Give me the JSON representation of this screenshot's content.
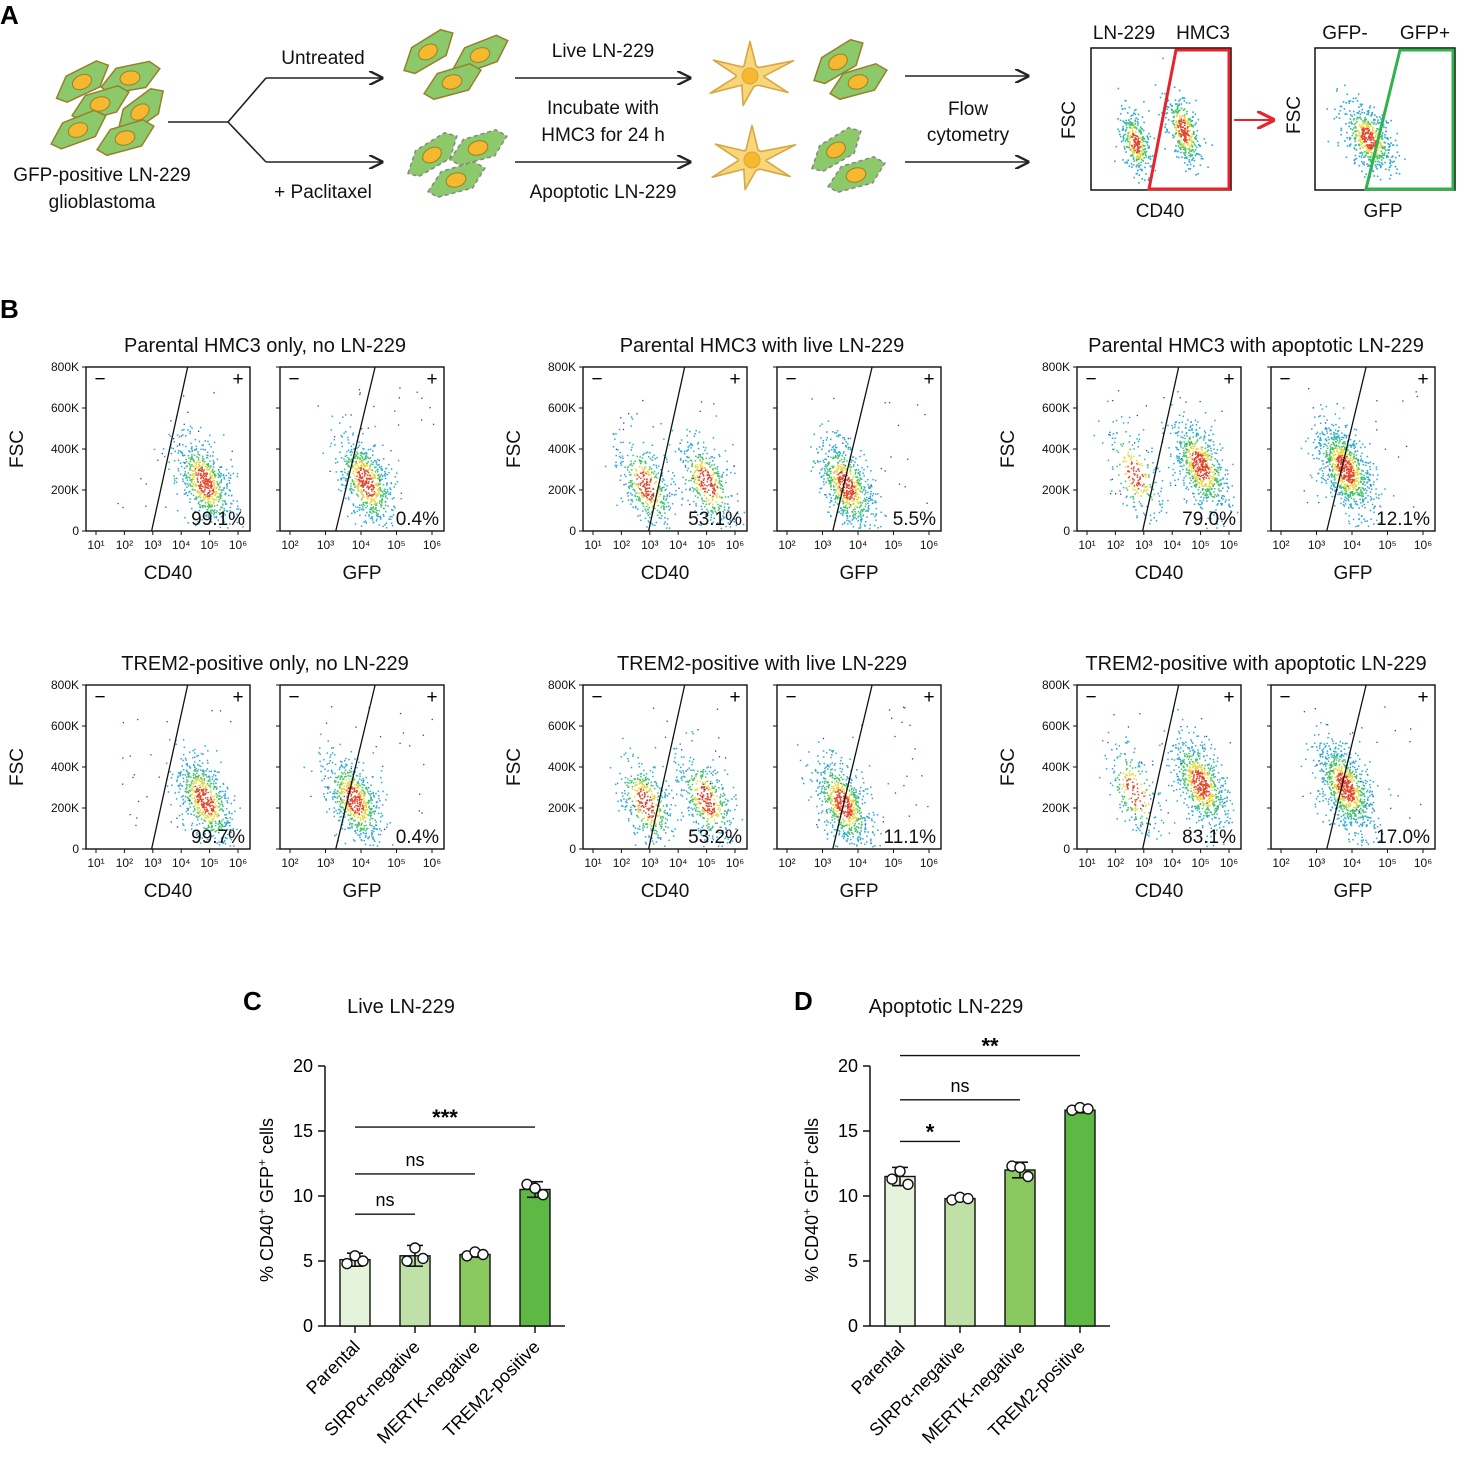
{
  "panel_labels": {
    "a": "A",
    "b": "B",
    "c": "C",
    "d": "D"
  },
  "schematic": {
    "cell_source_line1": "GFP-positive LN-229",
    "cell_source_line2": "glioblastoma",
    "branch_top": "Untreated",
    "branch_bottom": "+ Paclitaxel",
    "live_label": "Live LN-229",
    "incubate_line1": "Incubate with",
    "incubate_line2": "HMC3 for 24 h",
    "apoptotic_label": "Apoptotic LN-229",
    "flow_line1": "Flow",
    "flow_line2": "cytometry",
    "gate1": {
      "left_pop": "LN-229",
      "right_pop": "HMC3",
      "y_axis": "FSC",
      "x_axis": "CD40"
    },
    "gate2": {
      "left_pop": "GFP-",
      "right_pop": "GFP+",
      "y_axis": "FSC",
      "x_axis": "GFP"
    },
    "colors": {
      "cell_fill": "#8cc96b",
      "cell_edge": "#9a7f2a",
      "nucleus": "#f5b82e",
      "microglia": "#f7d77a",
      "gate_red": "#e8232a",
      "gate_green": "#2fb34a"
    }
  },
  "flow_panel": {
    "y_axis_label": "FSC",
    "y_ticks": [
      "800K",
      "600K",
      "400K",
      "200K",
      "0"
    ],
    "cd40_ticks": [
      "10¹",
      "10²",
      "10³",
      "10⁴",
      "10⁵",
      "10⁶"
    ],
    "gfp_ticks": [
      "10²",
      "10³",
      "10⁴",
      "10⁵",
      "10⁶"
    ],
    "x_label_cd40": "CD40",
    "x_label_gfp": "GFP",
    "minus": "−",
    "plus": "+",
    "groups": [
      {
        "title": "Parental HMC3 only, no LN-229",
        "cd40_pct": "99.1%",
        "gfp_pct": "0.4%",
        "cd40_fraction": 99.1,
        "gfp_fraction": 0.4
      },
      {
        "title": "Parental HMC3 with live LN-229",
        "cd40_pct": "53.1%",
        "gfp_pct": "5.5%",
        "cd40_fraction": 53.1,
        "gfp_fraction": 5.5
      },
      {
        "title": "Parental HMC3 with apoptotic LN-229",
        "cd40_pct": "79.0%",
        "gfp_pct": "12.1%",
        "cd40_fraction": 79.0,
        "gfp_fraction": 12.1
      },
      {
        "title": "TREM2-positive only, no LN-229",
        "cd40_pct": "99.7%",
        "gfp_pct": "0.4%",
        "cd40_fraction": 99.7,
        "gfp_fraction": 0.4
      },
      {
        "title": "TREM2-positive with live LN-229",
        "cd40_pct": "53.2%",
        "gfp_pct": "11.1%",
        "cd40_fraction": 53.2,
        "gfp_fraction": 11.1
      },
      {
        "title": "TREM2-positive with apoptotic LN-229",
        "cd40_pct": "83.1%",
        "gfp_pct": "17.0%",
        "cd40_fraction": 83.1,
        "gfp_fraction": 17.0
      }
    ]
  },
  "chart_data": [
    {
      "type": "bar",
      "title": "Live LN-229",
      "ylabel_main": "% CD40",
      "ylabel_sup1": "+",
      "ylabel_mid": " GFP",
      "ylabel_sup2": "+",
      "ylabel_tail": " cells",
      "categories": [
        "Parental",
        "SIRPα-negative",
        "MERTK-negative",
        "TREM2-positive"
      ],
      "values": [
        5.1,
        5.4,
        5.5,
        10.5
      ],
      "errors": [
        0.5,
        0.8,
        0.2,
        0.6
      ],
      "points": [
        [
          4.8,
          5.4,
          5.0
        ],
        [
          5.0,
          6.0,
          5.2
        ],
        [
          5.4,
          5.7,
          5.5
        ],
        [
          10.9,
          10.6,
          10.1
        ]
      ],
      "ylim": [
        0,
        20
      ],
      "yticks": [
        "0",
        "5",
        "10",
        "15",
        "20"
      ],
      "bar_colors": [
        "#e6f3dc",
        "#bfe0a6",
        "#8cc860",
        "#5db844"
      ],
      "significance": [
        {
          "from": 0,
          "to": 1,
          "label": "ns",
          "y": 8.6
        },
        {
          "from": 0,
          "to": 2,
          "label": "ns",
          "y": 11.7
        },
        {
          "from": 0,
          "to": 3,
          "label": "***",
          "y": 15.3
        }
      ]
    },
    {
      "type": "bar",
      "title": "Apoptotic LN-229",
      "ylabel_main": "% CD40",
      "ylabel_sup1": "+",
      "ylabel_mid": " GFP",
      "ylabel_sup2": "+",
      "ylabel_tail": " cells",
      "categories": [
        "Parental",
        "SIRPα-negative",
        "MERTK-negative",
        "TREM2-positive"
      ],
      "values": [
        11.5,
        9.8,
        12.0,
        16.6
      ],
      "errors": [
        0.7,
        0.2,
        0.6,
        0.2
      ],
      "points": [
        [
          11.3,
          11.9,
          10.9
        ],
        [
          9.7,
          9.9,
          9.8
        ],
        [
          12.3,
          12.2,
          11.5
        ],
        [
          16.6,
          16.8,
          16.7
        ]
      ],
      "ylim": [
        0,
        20
      ],
      "yticks": [
        "0",
        "5",
        "10",
        "15",
        "20"
      ],
      "bar_colors": [
        "#e6f3dc",
        "#bfe0a6",
        "#8cc860",
        "#5db844"
      ],
      "significance": [
        {
          "from": 0,
          "to": 1,
          "label": "*",
          "y": 14.2
        },
        {
          "from": 0,
          "to": 2,
          "label": "ns",
          "y": 17.4
        },
        {
          "from": 0,
          "to": 3,
          "label": "**",
          "y": 20.8
        }
      ]
    }
  ]
}
